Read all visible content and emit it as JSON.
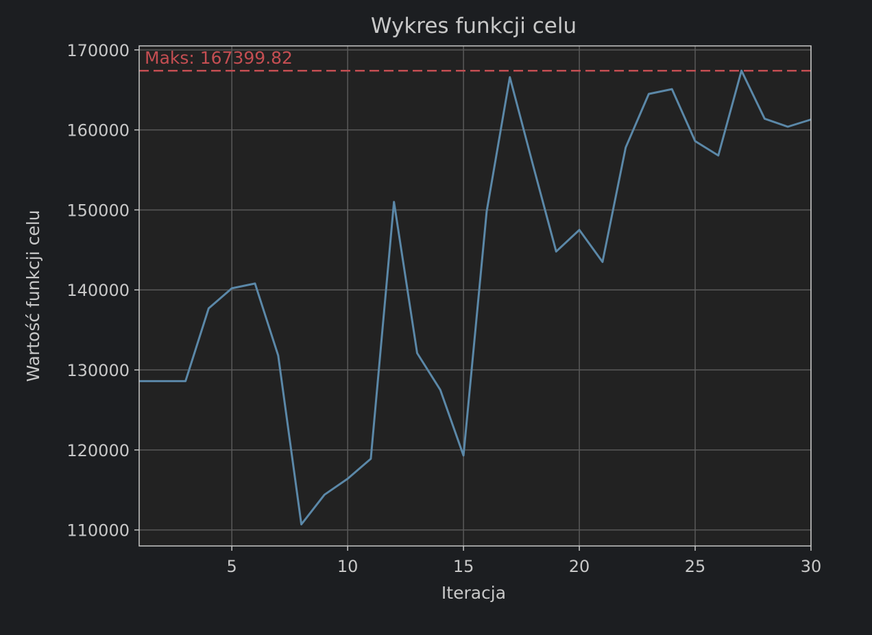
{
  "chart_data": {
    "type": "line",
    "title": "Wykres funkcji celu",
    "xlabel": "Iteracja",
    "ylabel": "Wartość funkcji celu",
    "xlim": [
      1,
      30
    ],
    "ylim": [
      108000,
      170500
    ],
    "x_ticks": [
      5,
      10,
      15,
      20,
      25,
      30
    ],
    "y_ticks": [
      110000,
      120000,
      130000,
      140000,
      150000,
      160000,
      170000
    ],
    "grid": true,
    "background": "#222222",
    "figure_background": "#1c1e21",
    "text_color": "#c8c8c8",
    "series": [
      {
        "color": "#5b88a8",
        "x": [
          1,
          2,
          3,
          4,
          5,
          6,
          7,
          8,
          9,
          10,
          11,
          12,
          13,
          14,
          15,
          16,
          17,
          18,
          19,
          20,
          21,
          22,
          23,
          24,
          25,
          26,
          27,
          28,
          29,
          30
        ],
        "y": [
          128600,
          128600,
          128600,
          137700,
          140200,
          140800,
          131800,
          110700,
          114400,
          116400,
          118900,
          151000,
          132100,
          127500,
          119300,
          149800,
          166600,
          155600,
          144800,
          147500,
          143500,
          157800,
          164500,
          165100,
          158600,
          156800,
          167399.82,
          161400,
          160400,
          161300
        ]
      }
    ],
    "reference_line": {
      "y": 167399.82,
      "color": "#c44e52",
      "style": "dashed",
      "label": "Maks: 167399.82"
    }
  }
}
